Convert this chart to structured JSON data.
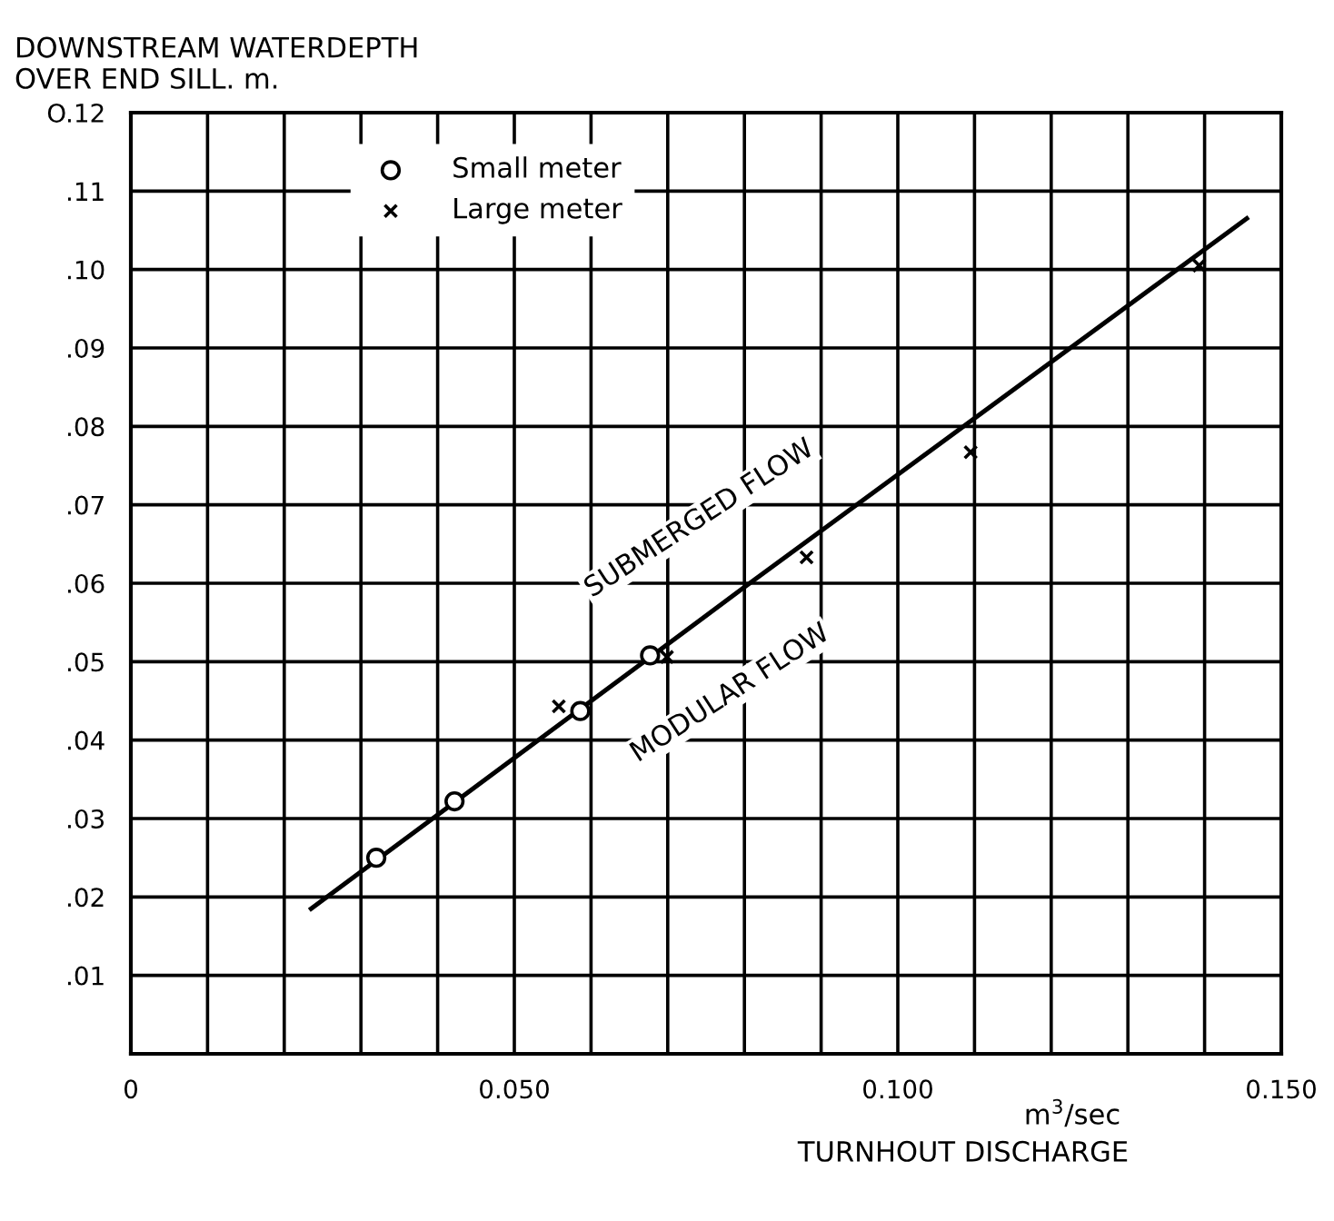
{
  "chart_data": {
    "type": "scatter",
    "ylabel": "DOWNSTREAM WATERDEPTH\nOVER END SILL. m.",
    "xlabel": "TURNHOUT DISCHARGE",
    "annotations": [
      "m$^{3}$/sec",
      "SUBMERGED FLOW",
      "MODULAR FLOW"
    ],
    "xlim": [
      0,
      0.15
    ],
    "ylim": [
      0,
      0.12
    ],
    "xticks": [
      {
        "value": 0,
        "label": "0"
      },
      {
        "value": 0.01,
        "label": null
      },
      {
        "value": 0.02,
        "label": null
      },
      {
        "value": 0.03,
        "label": null
      },
      {
        "value": 0.04,
        "label": null
      },
      {
        "value": 0.05,
        "label": "0.050"
      },
      {
        "value": 0.06,
        "label": null
      },
      {
        "value": 0.07,
        "label": null
      },
      {
        "value": 0.08,
        "label": null
      },
      {
        "value": 0.09,
        "label": null
      },
      {
        "value": 0.1,
        "label": "0.100"
      },
      {
        "value": 0.11,
        "label": null
      },
      {
        "value": 0.12,
        "label": null
      },
      {
        "value": 0.13,
        "label": null
      },
      {
        "value": 0.14,
        "label": null
      },
      {
        "value": 0.15,
        "label": "0.150"
      }
    ],
    "yticks": [
      {
        "value": 0,
        "label": null
      },
      {
        "value": 0.01,
        "label": ".01"
      },
      {
        "value": 0.02,
        "label": ".02"
      },
      {
        "value": 0.03,
        "label": ".03"
      },
      {
        "value": 0.04,
        "label": ".04"
      },
      {
        "value": 0.05,
        "label": ".05"
      },
      {
        "value": 0.06,
        "label": ".06"
      },
      {
        "value": 0.07,
        "label": ".07"
      },
      {
        "value": 0.08,
        "label": ".08"
      },
      {
        "value": 0.09,
        "label": ".09"
      },
      {
        "value": 0.1,
        "label": ".10"
      },
      {
        "value": 0.11,
        "label": ".11"
      },
      {
        "value": 0.12,
        "label": "O.12"
      }
    ],
    "grid": true,
    "legend": "top left",
    "series": [
      {
        "name": "Small meter",
        "marker": "circle",
        "color": "#000000",
        "x": [
          0.032,
          0.0422,
          0.0586,
          0.0677
        ],
        "values": [
          0.025,
          0.0322,
          0.0437,
          0.0508
        ]
      },
      {
        "name": "Large meter",
        "marker": "cross",
        "color": "#000000",
        "x": [
          0.0558,
          0.0699,
          0.0881,
          0.1095,
          0.1393
        ],
        "values": [
          0.0443,
          0.0506,
          0.0633,
          0.0767,
          0.1005
        ]
      },
      {
        "type": "line",
        "marker": "none",
        "line_style": "solid",
        "color": "#000000",
        "x": [
          0.0235,
          0.08,
          0.1455
        ],
        "values": [
          0.0185,
          0.0595,
          0.1065
        ]
      }
    ]
  }
}
